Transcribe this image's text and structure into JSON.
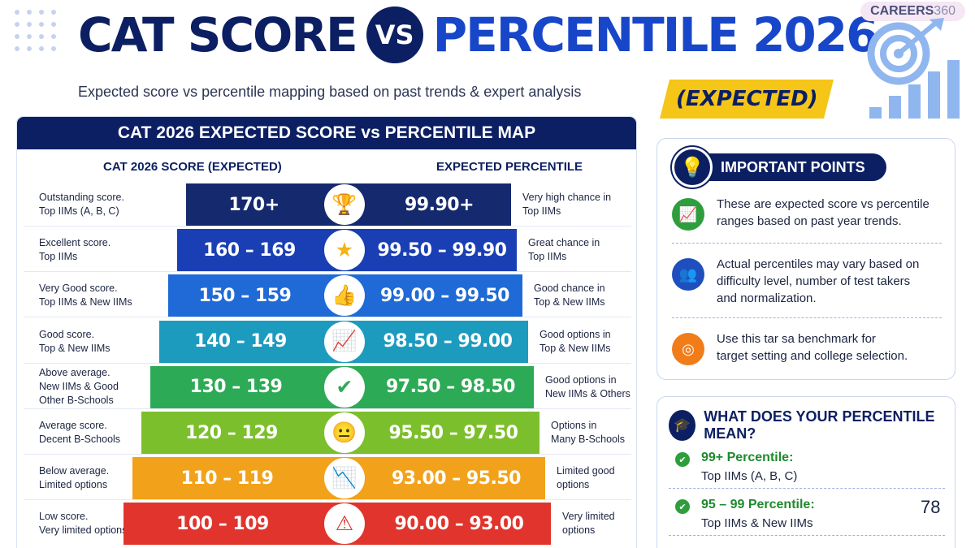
{
  "header": {
    "title_left": "CAT SCORE",
    "vs": "VS",
    "title_right": "PERCENTILE 2026",
    "subtitle": "Expected score vs percentile mapping based on past trends & expert analysis",
    "expected_tag": "(EXPECTED)",
    "brand_name": "CAREERS",
    "brand_number": "360"
  },
  "map": {
    "title": "CAT 2026 EXPECTED SCORE vs PERCENTILE MAP",
    "score_col": "CAT 2026 SCORE (EXPECTED)",
    "pct_col": "EXPECTED PERCENTILE",
    "rows": [
      {
        "desc_left": [
          "Outstanding score.",
          "Top IIMs (A, B, C)"
        ],
        "score": "170+",
        "pct": "99.90+",
        "desc_right": [
          "Very high chance in",
          "Top IIMs"
        ],
        "icon": "trophy-icon",
        "color": "#15296f"
      },
      {
        "desc_left": [
          "Excellent score.",
          "Top IIMs"
        ],
        "score": "160 – 169",
        "pct": "99.50 – 99.90",
        "desc_right": [
          "Great chance in",
          "Top IIMs"
        ],
        "icon": "star-icon",
        "color": "#1a3fb4"
      },
      {
        "desc_left": [
          "Very Good score.",
          "Top IIMs & New IIMs"
        ],
        "score": "150 – 159",
        "pct": "99.00 – 99.50",
        "desc_right": [
          "Good chance in",
          "Top & New IIMs"
        ],
        "icon": "thumbs-up-icon",
        "color": "#1f6ad6"
      },
      {
        "desc_left": [
          "Good score.",
          "Top & New IIMs"
        ],
        "score": "140 – 149",
        "pct": "98.50 – 99.00",
        "desc_right": [
          "Good options in",
          "Top & New IIMs"
        ],
        "icon": "trend-chart-icon",
        "color": "#1c9bbf"
      },
      {
        "desc_left": [
          "Above average.",
          "New IIMs & Good",
          "Other B-Schools"
        ],
        "score": "130 – 139",
        "pct": "97.50 – 98.50",
        "desc_right": [
          "Good options in",
          "New IIMs & Others"
        ],
        "icon": "check-icon",
        "color": "#2daa55"
      },
      {
        "desc_left": [
          "Average score.",
          "Decent B-Schools"
        ],
        "score": "120 – 129",
        "pct": "95.50 – 97.50",
        "desc_right": [
          "Options in",
          "Many B-Schools"
        ],
        "icon": "neutral-face-icon",
        "color": "#7cbf2c"
      },
      {
        "desc_left": [
          "Below average.",
          "Limited options"
        ],
        "score": "110 – 119",
        "pct": "93.00 – 95.50",
        "desc_right": [
          "Limited good",
          "options"
        ],
        "icon": "down-trend-icon",
        "color": "#f2a21a"
      },
      {
        "desc_left": [
          "Low score.",
          "Very limited options"
        ],
        "score": "100 – 109",
        "pct": "90.00 – 93.00",
        "desc_right": [
          "Very limited",
          "options"
        ],
        "icon": "warning-icon",
        "color": "#e0342c"
      }
    ]
  },
  "important": {
    "title": "IMPORTANT POINTS",
    "points": [
      {
        "text": [
          "These are expected score vs percentile",
          "ranges based on past year trends."
        ],
        "icon": "chart-up-icon",
        "color": "#2e9e3c"
      },
      {
        "text": [
          "Actual percentiles may vary based on",
          "difficulty level, number of test takers",
          "and normalization."
        ],
        "icon": "users-icon",
        "color": "#1f4fbf"
      },
      {
        "text": [
          "Use this tar sa benchmark for",
          "target setting and college selection."
        ],
        "icon": "target-icon",
        "color": "#f07c1a"
      }
    ]
  },
  "meaning": {
    "title": "WHAT DOES YOUR PERCENTILE MEAN?",
    "items": [
      {
        "head": "99+ Percentile:",
        "sub": "Top IIMs (A, B, C)"
      },
      {
        "head": "95 – 99 Percentile:",
        "sub": "Top IIMs & New IIMs"
      }
    ]
  },
  "page_number": "78"
}
